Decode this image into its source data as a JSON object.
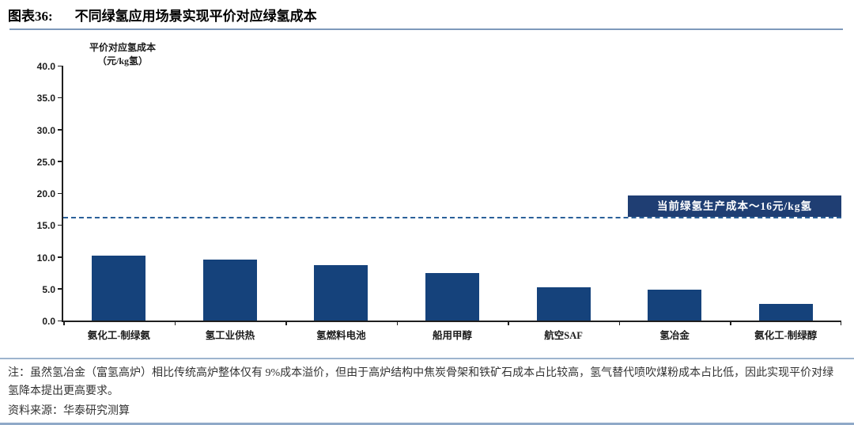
{
  "header": {
    "figure_label": "图表36:",
    "title": "不同绿氢应用场景实现平价对应绿氢成本"
  },
  "chart_data": {
    "type": "bar",
    "ylabel_line1": "平价对应氢成本",
    "ylabel_line2": "（元/kg氢）",
    "categories": [
      "氨化工-制绿氨",
      "氢工业供热",
      "氢燃料电池",
      "船用甲醇",
      "航空SAF",
      "氢冶金",
      "氨化工-制绿醇"
    ],
    "values": [
      10.2,
      9.6,
      8.7,
      7.4,
      5.2,
      4.9,
      2.6
    ],
    "ylim": [
      0,
      40
    ],
    "ytick_step": 5,
    "grid": "off",
    "threshold": {
      "value": 16,
      "label": "当前绿氢生产成本～16元/kg氢"
    },
    "bar_color": "#15427B",
    "threshold_line_color": "#2A6099",
    "annotation_bg": "#1F3E73",
    "annotation_text_color": "#FFFFFF"
  },
  "footer": {
    "note": "注：虽然氢冶金（富氢高炉）相比传统高炉整体仅有 9%成本溢价，但由于高炉结构中焦炭骨架和铁矿石成本占比较高，氢气替代喷吹煤粉成本占比低，因此实现平价对绿氢降本提出更高要求。",
    "source": "资料来源：华泰研究测算"
  }
}
